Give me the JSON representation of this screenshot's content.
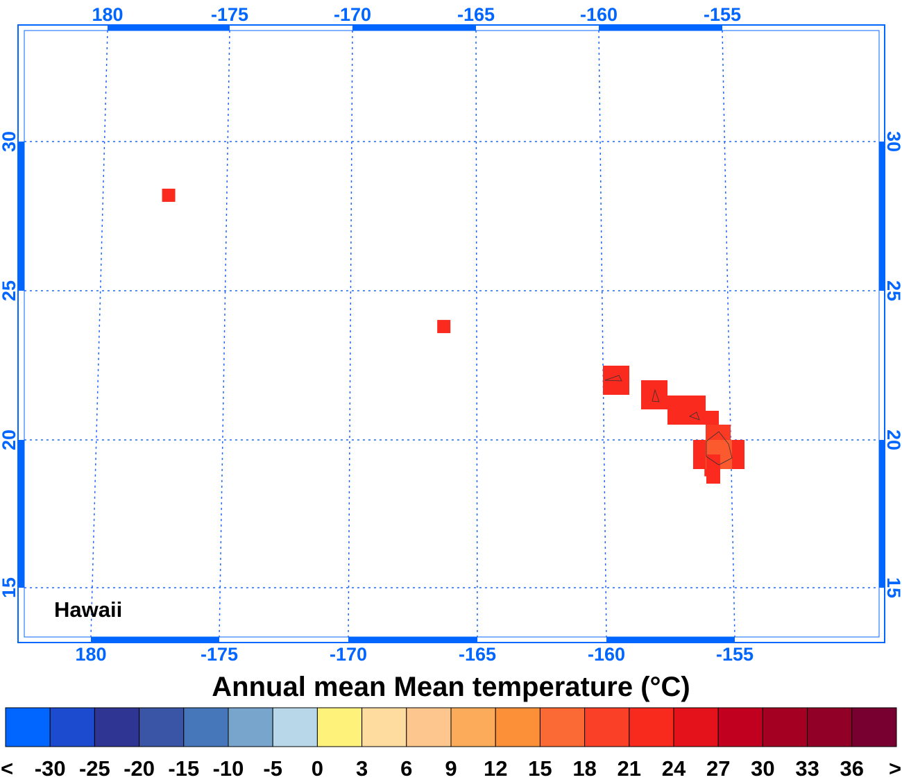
{
  "map": {
    "region_label": "Hawaii",
    "top_lon_ticks": [
      "180",
      "-175",
      "-170",
      "-165",
      "-160",
      "-155"
    ],
    "bottom_lon_ticks": [
      "180",
      "-175",
      "-170",
      "-165",
      "-160",
      "-155"
    ],
    "lat_ticks": [
      "30",
      "25",
      "20",
      "15"
    ],
    "axis_color": "#0066ff",
    "grid_color": "#1a66ff"
  },
  "title": "Annual mean Mean temperature (°C)",
  "colorbar": {
    "colors": [
      "#0066ff",
      "#1c4bd0",
      "#2f3592",
      "#3a55a5",
      "#4777bb",
      "#77a5cc",
      "#b8d8ea",
      "#fef27a",
      "#fedc9f",
      "#fdc68e",
      "#fcab5a",
      "#fc9038",
      "#fb6a34",
      "#fa4127",
      "#f72a1d",
      "#e4131b",
      "#c1001f",
      "#a40021",
      "#910027",
      "#780030"
    ],
    "labels": [
      "<",
      "-30",
      "-25",
      "-20",
      "-15",
      "-10",
      "-5",
      "0",
      "3",
      "6",
      "9",
      "12",
      "15",
      "18",
      "21",
      "24",
      "27",
      "30",
      "33",
      "36",
      ">"
    ]
  },
  "cells": [
    {
      "lon": -177.35,
      "lat": 28.2,
      "color": "#fa2a1e"
    },
    {
      "lon": -166.3,
      "lat": 23.8,
      "color": "#fa2a1e"
    },
    {
      "lon": -159.5,
      "lat": 22.0,
      "color": "#fa2a1e"
    },
    {
      "lon": -158.0,
      "lat": 21.5,
      "color": "#fa2a1e"
    },
    {
      "lon": -157.0,
      "lat": 21.0,
      "color": "#fa2a1e"
    },
    {
      "lon": -156.5,
      "lat": 20.8,
      "color": "#fa2a1e"
    },
    {
      "lon": -155.5,
      "lat": 20.0,
      "color": "#fa4127"
    },
    {
      "lon": -155.3,
      "lat": 19.5,
      "color": "#fb6a34"
    },
    {
      "lon": -155.8,
      "lat": 19.0,
      "color": "#fa2a1e"
    }
  ]
}
